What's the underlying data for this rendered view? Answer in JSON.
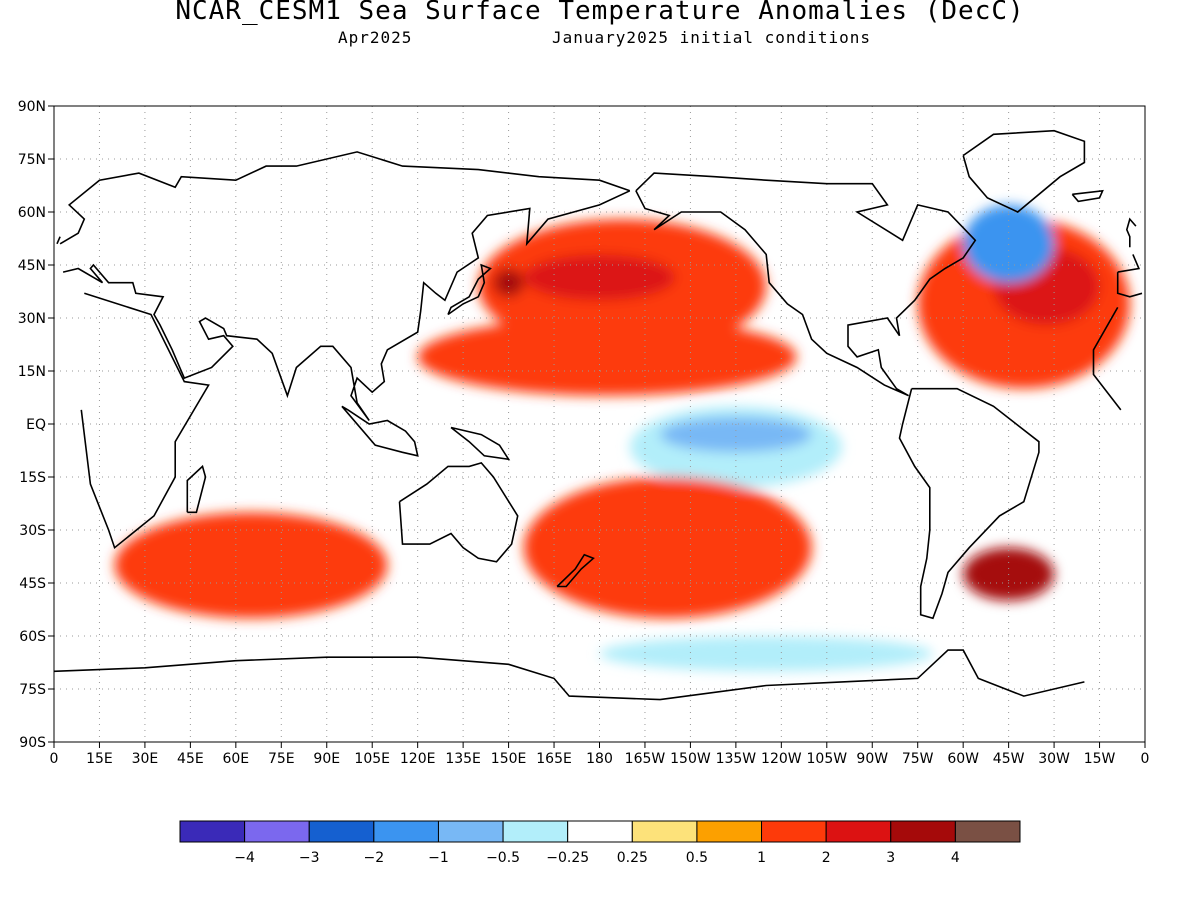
{
  "title": "NCAR_CESM1 Sea Surface Temperature Anomalies (DecC)",
  "subtitle_left": "Apr2025",
  "subtitle_right": "January2025 initial conditions",
  "latitude_labels": [
    "90N",
    "75N",
    "60N",
    "45N",
    "30N",
    "15N",
    "EQ",
    "15S",
    "30S",
    "45S",
    "60S",
    "75S",
    "90S"
  ],
  "longitude_labels": [
    "0",
    "15E",
    "30E",
    "45E",
    "60E",
    "75E",
    "90E",
    "105E",
    "120E",
    "135E",
    "150E",
    "165E",
    "180",
    "165W",
    "150W",
    "135W",
    "120W",
    "105W",
    "90W",
    "75W",
    "60W",
    "45W",
    "30W",
    "15W",
    "0"
  ],
  "colorbar": {
    "colors": [
      "#3a2ab8",
      "#7b68ee",
      "#1560d0",
      "#3b94f0",
      "#78b8f5",
      "#b2eefa",
      "#ffffff",
      "#fde27a",
      "#fca000",
      "#fd3a0a",
      "#dc1212",
      "#a50a0a",
      "#7a5044"
    ],
    "labels": [
      "-4",
      "-3",
      "-2",
      "-1",
      "-0.5",
      "-0.25",
      "0.25",
      "0.5",
      "1",
      "2",
      "3",
      "4"
    ]
  },
  "anomaly_regions": [
    {
      "name": "north-pacific-warm",
      "lon": [
        140,
        235
      ],
      "lat": [
        20,
        58
      ],
      "level": "1"
    },
    {
      "name": "north-pacific-core",
      "lon": [
        155,
        205
      ],
      "lat": [
        35,
        48
      ],
      "level": "2"
    },
    {
      "name": "kuroshio-hotspot",
      "lon": [
        145,
        155
      ],
      "lat": [
        36,
        44
      ],
      "level": "3"
    },
    {
      "name": "central-pacific-band",
      "lon": [
        120,
        245
      ],
      "lat": [
        8,
        30
      ],
      "level": "1"
    },
    {
      "name": "equatorial-pacific-cool",
      "lon": [
        190,
        260
      ],
      "lat": [
        -18,
        5
      ],
      "level": "-0.25"
    },
    {
      "name": "equatorial-pacific-cool-core",
      "lon": [
        200,
        250
      ],
      "lat": [
        -8,
        2
      ],
      "level": "-0.5"
    },
    {
      "name": "north-atlantic-warm",
      "lon": [
        285,
        355
      ],
      "lat": [
        10,
        58
      ],
      "level": "1"
    },
    {
      "name": "north-atlantic-core",
      "lon": [
        310,
        345
      ],
      "lat": [
        28,
        50
      ],
      "level": "2"
    },
    {
      "name": "labrador-cool",
      "lon": [
        300,
        330
      ],
      "lat": [
        40,
        62
      ],
      "level": "-1"
    },
    {
      "name": "south-pacific-warm",
      "lon": [
        155,
        250
      ],
      "lat": [
        -55,
        -15
      ],
      "level": "1"
    },
    {
      "name": "indian-ocean-south",
      "lon": [
        20,
        110
      ],
      "lat": [
        -55,
        -25
      ],
      "level": "1"
    },
    {
      "name": "southwest-atlantic-hotspot",
      "lon": [
        300,
        330
      ],
      "lat": [
        -50,
        -35
      ],
      "level": "3"
    },
    {
      "name": "southern-ocean-cool",
      "lon": [
        180,
        290
      ],
      "lat": [
        -70,
        -60
      ],
      "level": "-0.25"
    }
  ]
}
